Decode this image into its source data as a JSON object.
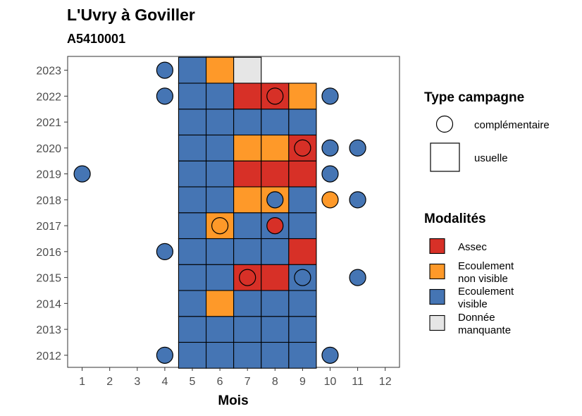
{
  "chart_data": {
    "type": "heatmap",
    "title": "L'Uvry à Goviller",
    "subtitle": "A5410001",
    "xlabel": "Mois",
    "ylabel": "",
    "x_ticks": [
      1,
      2,
      3,
      4,
      5,
      6,
      7,
      8,
      9,
      10,
      11,
      12
    ],
    "y_ticks": [
      2012,
      2013,
      2014,
      2015,
      2016,
      2017,
      2018,
      2019,
      2020,
      2021,
      2022,
      2023
    ],
    "colors": {
      "assec": "#d73027",
      "ecoulement_non_visible": "#fe9929",
      "ecoulement_visible": "#4575b4",
      "donnee_manquante": "#e6e6e6"
    },
    "legend_type": {
      "title": "Type campagne",
      "items": [
        {
          "label": "complémentaire",
          "shape": "circle"
        },
        {
          "label": "usuelle",
          "shape": "square"
        }
      ]
    },
    "legend_mod": {
      "title": "Modalités",
      "items": [
        {
          "key": "assec",
          "label1": "Assec",
          "label2": ""
        },
        {
          "key": "ecoulement_non_visible",
          "label1": "Ecoulement",
          "label2": "non visible"
        },
        {
          "key": "ecoulement_visible",
          "label1": "Ecoulement",
          "label2": "visible"
        },
        {
          "key": "donnee_manquante",
          "label1": "Donnée",
          "label2": "manquante"
        }
      ]
    },
    "usuelle": [
      {
        "year": 2012,
        "months": [
          "ecoulement_visible",
          "ecoulement_visible",
          "ecoulement_visible",
          "ecoulement_visible",
          "ecoulement_visible"
        ]
      },
      {
        "year": 2013,
        "months": [
          "ecoulement_visible",
          "ecoulement_visible",
          "ecoulement_visible",
          "ecoulement_visible",
          "ecoulement_visible"
        ]
      },
      {
        "year": 2014,
        "months": [
          "ecoulement_visible",
          "ecoulement_non_visible",
          "ecoulement_visible",
          "ecoulement_visible",
          "ecoulement_visible"
        ]
      },
      {
        "year": 2015,
        "months": [
          "ecoulement_visible",
          "ecoulement_visible",
          "assec",
          "assec",
          "ecoulement_visible"
        ]
      },
      {
        "year": 2016,
        "months": [
          "ecoulement_visible",
          "ecoulement_visible",
          "ecoulement_visible",
          "ecoulement_visible",
          "assec"
        ]
      },
      {
        "year": 2017,
        "months": [
          "ecoulement_visible",
          "ecoulement_non_visible",
          "ecoulement_visible",
          "ecoulement_visible",
          "ecoulement_visible"
        ]
      },
      {
        "year": 2018,
        "months": [
          "ecoulement_visible",
          "ecoulement_visible",
          "ecoulement_non_visible",
          "ecoulement_non_visible",
          "ecoulement_visible"
        ]
      },
      {
        "year": 2019,
        "months": [
          "ecoulement_visible",
          "ecoulement_visible",
          "assec",
          "assec",
          "assec"
        ]
      },
      {
        "year": 2020,
        "months": [
          "ecoulement_visible",
          "ecoulement_visible",
          "ecoulement_non_visible",
          "ecoulement_non_visible",
          "assec"
        ]
      },
      {
        "year": 2021,
        "months": [
          "ecoulement_visible",
          "ecoulement_visible",
          "ecoulement_visible",
          "ecoulement_visible",
          "ecoulement_visible"
        ]
      },
      {
        "year": 2022,
        "months": [
          "ecoulement_visible",
          "ecoulement_visible",
          "assec",
          "assec",
          "ecoulement_non_visible"
        ]
      },
      {
        "year": 2023,
        "months": [
          "ecoulement_visible",
          "ecoulement_non_visible",
          "donnee_manquante",
          null,
          null
        ]
      }
    ],
    "usuelle_first_month": 5,
    "complementaire": [
      {
        "year": 2012,
        "month": 4,
        "value": "ecoulement_visible"
      },
      {
        "year": 2012,
        "month": 10,
        "value": "ecoulement_visible"
      },
      {
        "year": 2015,
        "month": 7,
        "value": "assec"
      },
      {
        "year": 2015,
        "month": 9,
        "value": "ecoulement_visible"
      },
      {
        "year": 2015,
        "month": 11,
        "value": "ecoulement_visible"
      },
      {
        "year": 2016,
        "month": 4,
        "value": "ecoulement_visible"
      },
      {
        "year": 2017,
        "month": 6,
        "value": "ecoulement_non_visible"
      },
      {
        "year": 2017,
        "month": 8,
        "value": "assec"
      },
      {
        "year": 2018,
        "month": 8,
        "value": "ecoulement_visible"
      },
      {
        "year": 2018,
        "month": 10,
        "value": "ecoulement_non_visible"
      },
      {
        "year": 2018,
        "month": 11,
        "value": "ecoulement_visible"
      },
      {
        "year": 2019,
        "month": 1,
        "value": "ecoulement_visible"
      },
      {
        "year": 2019,
        "month": 10,
        "value": "ecoulement_visible"
      },
      {
        "year": 2020,
        "month": 9,
        "value": "assec"
      },
      {
        "year": 2020,
        "month": 10,
        "value": "ecoulement_visible"
      },
      {
        "year": 2020,
        "month": 11,
        "value": "ecoulement_visible"
      },
      {
        "year": 2022,
        "month": 4,
        "value": "ecoulement_visible"
      },
      {
        "year": 2022,
        "month": 8,
        "value": "assec"
      },
      {
        "year": 2022,
        "month": 10,
        "value": "ecoulement_visible"
      },
      {
        "year": 2023,
        "month": 4,
        "value": "ecoulement_visible"
      }
    ]
  }
}
